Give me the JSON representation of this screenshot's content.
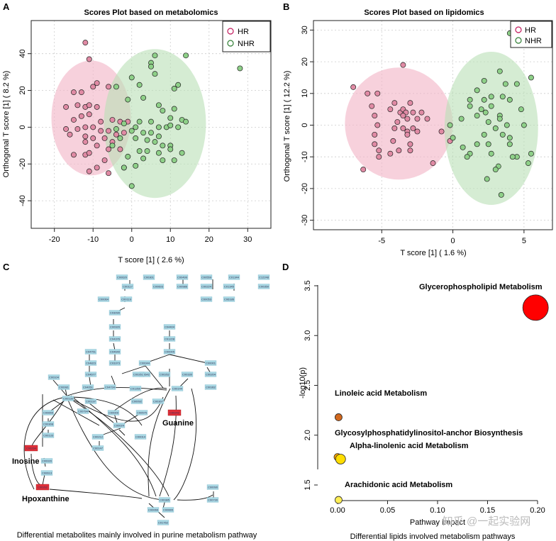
{
  "panels": {
    "A": {
      "letter": "A",
      "title": "Scores Plot based on metabolomics",
      "xlabel": "T score [1] ( 2.6 %)",
      "ylabel": "Orthogonal T score [1] ( 8.2 %)"
    },
    "B": {
      "letter": "B",
      "title": "Scores Plot based on lipidomics",
      "xlabel": "T score [1] ( 1.6 %)",
      "ylabel": "Orthogonal T score [1] ( 12.2 %)"
    },
    "C": {
      "letter": "C",
      "caption": "Differential metabolites mainly involved in purine metabolism pathway",
      "labels": {
        "guanine": "Guanine",
        "inosine": "Inosine",
        "hypoxanthine": "Hpoxanthine"
      }
    },
    "D": {
      "letter": "D",
      "caption": "Differential lipids involved metabolism pathways",
      "xlabel": "Pathway Impact",
      "ylabel": "-log10(p)"
    }
  },
  "legend": {
    "hr": "HR",
    "nhr": "NHR"
  },
  "colors": {
    "hr_fill": "#f3b9c9",
    "hr_stroke": "#c2185b",
    "nhr_fill": "#b9e0b5",
    "nhr_stroke": "#2e7d32",
    "red_node": "#e0303a",
    "node": "#a9d8e4"
  },
  "watermark": "知乎 @一起实验网",
  "chart_data": [
    {
      "type": "scatter",
      "title": "Scores Plot based on metabolomics",
      "xlabel": "T score [1] ( 2.6 %)",
      "ylabel": "Orthogonal T score [1] ( 8.2 %)",
      "xlim": [
        -26,
        36
      ],
      "ylim": [
        -55,
        58
      ],
      "xticks": [
        "-20",
        "-10",
        "0",
        "10",
        "20",
        "30"
      ],
      "yticks": [
        "-40",
        "-20",
        "0",
        "20",
        "40"
      ],
      "grid": true,
      "legend": "top-right",
      "series": [
        {
          "name": "HR",
          "points": [
            [
              -12,
              46
            ],
            [
              -11,
              37
            ],
            [
              -15,
              19
            ],
            [
              -13,
              19
            ],
            [
              -10,
              22
            ],
            [
              -9,
              24
            ],
            [
              -6,
              22
            ],
            [
              -17,
              11
            ],
            [
              -14,
              12
            ],
            [
              -12,
              11
            ],
            [
              -11,
              12
            ],
            [
              -9,
              11
            ],
            [
              -15,
              4
            ],
            [
              -13,
              6
            ],
            [
              -11,
              7
            ],
            [
              -8,
              3
            ],
            [
              -5,
              4
            ],
            [
              -3,
              3
            ],
            [
              -1,
              3
            ],
            [
              -17,
              -1
            ],
            [
              -14,
              -1
            ],
            [
              -12,
              0
            ],
            [
              -10,
              0
            ],
            [
              -8,
              -2
            ],
            [
              -6,
              -2
            ],
            [
              -4,
              -4
            ],
            [
              -2,
              -3
            ],
            [
              -16,
              -4
            ],
            [
              -12,
              -5
            ],
            [
              -10,
              -6
            ],
            [
              -7,
              -6
            ],
            [
              -5,
              -8
            ],
            [
              -12,
              -8
            ],
            [
              -9,
              -10
            ],
            [
              -6,
              -12
            ],
            [
              -3,
              -12
            ],
            [
              -15,
              -15
            ],
            [
              -12,
              -15
            ],
            [
              -11,
              -14
            ],
            [
              -7,
              -18
            ],
            [
              -11,
              -24
            ],
            [
              -9,
              -22
            ],
            [
              -6,
              -25
            ],
            [
              -2,
              -22
            ]
          ]
        },
        {
          "name": "NHR",
          "points": [
            [
              14,
              39
            ],
            [
              6,
              39
            ],
            [
              5,
              35
            ],
            [
              5,
              33
            ],
            [
              28,
              32
            ],
            [
              6,
              29
            ],
            [
              0,
              27
            ],
            [
              2,
              23
            ],
            [
              12,
              23
            ],
            [
              11,
              21
            ],
            [
              -4,
              22
            ],
            [
              -1,
              15
            ],
            [
              3,
              16
            ],
            [
              7,
              12
            ],
            [
              11,
              10
            ],
            [
              8,
              9
            ],
            [
              10,
              5
            ],
            [
              13,
              4
            ],
            [
              14,
              3
            ],
            [
              2,
              3
            ],
            [
              5,
              3
            ],
            [
              -2,
              2
            ],
            [
              1,
              0
            ],
            [
              7,
              0
            ],
            [
              9,
              0
            ],
            [
              10,
              1
            ],
            [
              12,
              0
            ],
            [
              -4,
              -1
            ],
            [
              0,
              -2
            ],
            [
              3,
              -3
            ],
            [
              5,
              -3
            ],
            [
              7,
              -5
            ],
            [
              -3,
              -6
            ],
            [
              1,
              -6
            ],
            [
              4,
              -7
            ],
            [
              6,
              -8
            ],
            [
              -5,
              -10
            ],
            [
              8,
              -10
            ],
            [
              10,
              -10
            ],
            [
              2,
              -13
            ],
            [
              4,
              -13
            ],
            [
              7,
              -14
            ],
            [
              10,
              -12
            ],
            [
              13,
              -14
            ],
            [
              -1,
              -16
            ],
            [
              3,
              -17
            ],
            [
              8,
              -18
            ],
            [
              11,
              -18
            ],
            [
              1,
              -21
            ],
            [
              -2,
              -22
            ],
            [
              0,
              -32
            ]
          ]
        }
      ]
    },
    {
      "type": "scatter",
      "title": "Scores Plot based on lipidomics",
      "xlabel": "T score [1] ( 1.6 %)",
      "ylabel": "Orthogonal T score [1] ( 12.2 %)",
      "xlim": [
        -9.8,
        7
      ],
      "ylim": [
        -33,
        33
      ],
      "xticks": [
        "-5",
        "0",
        "5"
      ],
      "yticks": [
        "-30",
        "-20",
        "-10",
        "0",
        "10",
        "20",
        "30"
      ],
      "grid": true,
      "legend": "top-right",
      "series": [
        {
          "name": "HR",
          "points": [
            [
              -3.5,
              19
            ],
            [
              -7,
              12
            ],
            [
              -6,
              10
            ],
            [
              -5.3,
              10
            ],
            [
              -4.1,
              7
            ],
            [
              -3,
              7
            ],
            [
              -5.7,
              6
            ],
            [
              -4.4,
              5
            ],
            [
              -3.7,
              4
            ],
            [
              -3.5,
              5
            ],
            [
              -3.3,
              4
            ],
            [
              -2.8,
              4
            ],
            [
              -2.2,
              4
            ],
            [
              -5.5,
              3
            ],
            [
              -3.5,
              3
            ],
            [
              -3.9,
              1
            ],
            [
              -3.2,
              2
            ],
            [
              -2.5,
              2
            ],
            [
              -1.8,
              2
            ],
            [
              -5.3,
              0
            ],
            [
              -3.5,
              -1
            ],
            [
              -3.2,
              -2
            ],
            [
              -4.1,
              -1
            ],
            [
              -2.8,
              -1
            ],
            [
              -2.5,
              -2
            ],
            [
              -5.5,
              -3
            ],
            [
              -3.2,
              -3
            ],
            [
              -0.8,
              -2
            ],
            [
              -4.2,
              -5
            ],
            [
              -5.5,
              -6
            ],
            [
              -3,
              -6
            ],
            [
              -5.2,
              -8
            ],
            [
              -4.4,
              -9
            ],
            [
              -3,
              -8
            ],
            [
              -5.2,
              -10
            ],
            [
              -3.8,
              -8
            ],
            [
              -1.4,
              -12
            ],
            [
              -6.3,
              -14
            ],
            [
              -0.2,
              -5
            ]
          ]
        },
        {
          "name": "NHR",
          "points": [
            [
              4,
              29
            ],
            [
              3.3,
              17
            ],
            [
              5.5,
              15
            ],
            [
              2.2,
              14
            ],
            [
              3.7,
              13
            ],
            [
              4.5,
              13
            ],
            [
              1.7,
              11
            ],
            [
              3.5,
              9
            ],
            [
              1.2,
              8
            ],
            [
              2.2,
              8
            ],
            [
              2.7,
              9
            ],
            [
              4,
              8
            ],
            [
              4.8,
              5
            ],
            [
              1.2,
              6
            ],
            [
              2,
              5
            ],
            [
              2.7,
              6
            ],
            [
              2.3,
              4
            ],
            [
              1.7,
              3
            ],
            [
              3.3,
              3
            ],
            [
              3.3,
              2
            ],
            [
              0.6,
              2
            ],
            [
              2.5,
              1
            ],
            [
              3.8,
              0
            ],
            [
              5,
              0
            ],
            [
              -0.2,
              0
            ],
            [
              3,
              -1
            ],
            [
              2.2,
              -3
            ],
            [
              3.5,
              -3
            ],
            [
              4,
              -4
            ],
            [
              0,
              -4
            ],
            [
              1.7,
              -6
            ],
            [
              2.5,
              -6
            ],
            [
              4,
              -6
            ],
            [
              5.5,
              -9
            ],
            [
              0.7,
              -7
            ],
            [
              1.2,
              -9
            ],
            [
              2.7,
              -9
            ],
            [
              4.5,
              -10
            ],
            [
              1,
              -10
            ],
            [
              4.2,
              -10
            ],
            [
              5.3,
              -12
            ],
            [
              3.2,
              -13
            ],
            [
              3,
              -14
            ],
            [
              2.4,
              -17
            ],
            [
              3.4,
              -22
            ]
          ]
        }
      ]
    },
    {
      "type": "scatter",
      "xlabel": "Pathway Impact",
      "ylabel": "-log10(p)",
      "xlim": [
        -0.02,
        0.22
      ],
      "ylim": [
        1.28,
        3.62
      ],
      "xticks": [
        "0.00",
        "0.05",
        "0.10",
        "0.15",
        "0.20"
      ],
      "yticks": [
        "1.5",
        "2.0",
        "2.5",
        "3.0",
        "3.5"
      ],
      "grid": false,
      "series": [
        {
          "points": [
            {
              "name": "Glycerophospholipid Metabolism",
              "x": 0.198,
              "y": 3.28,
              "color": "#ff0000"
            },
            {
              "name": "Linoleic acid Metabolism",
              "x": 0.001,
              "y": 2.18,
              "color": "#d2691e"
            },
            {
              "name": "Glycosylphosphatidylinositol-anchor Biosynthesis",
              "x": 0.0,
              "y": 1.78,
              "color": "#ffa500"
            },
            {
              "name": "Alpha-linolenic acid Metabolism",
              "x": 0.003,
              "y": 1.76,
              "color": "#ffdd00"
            },
            {
              "name": "Arachidonic acid Metabolism",
              "x": 0.001,
              "y": 1.35,
              "color": "#ffee55"
            }
          ]
        }
      ]
    }
  ]
}
